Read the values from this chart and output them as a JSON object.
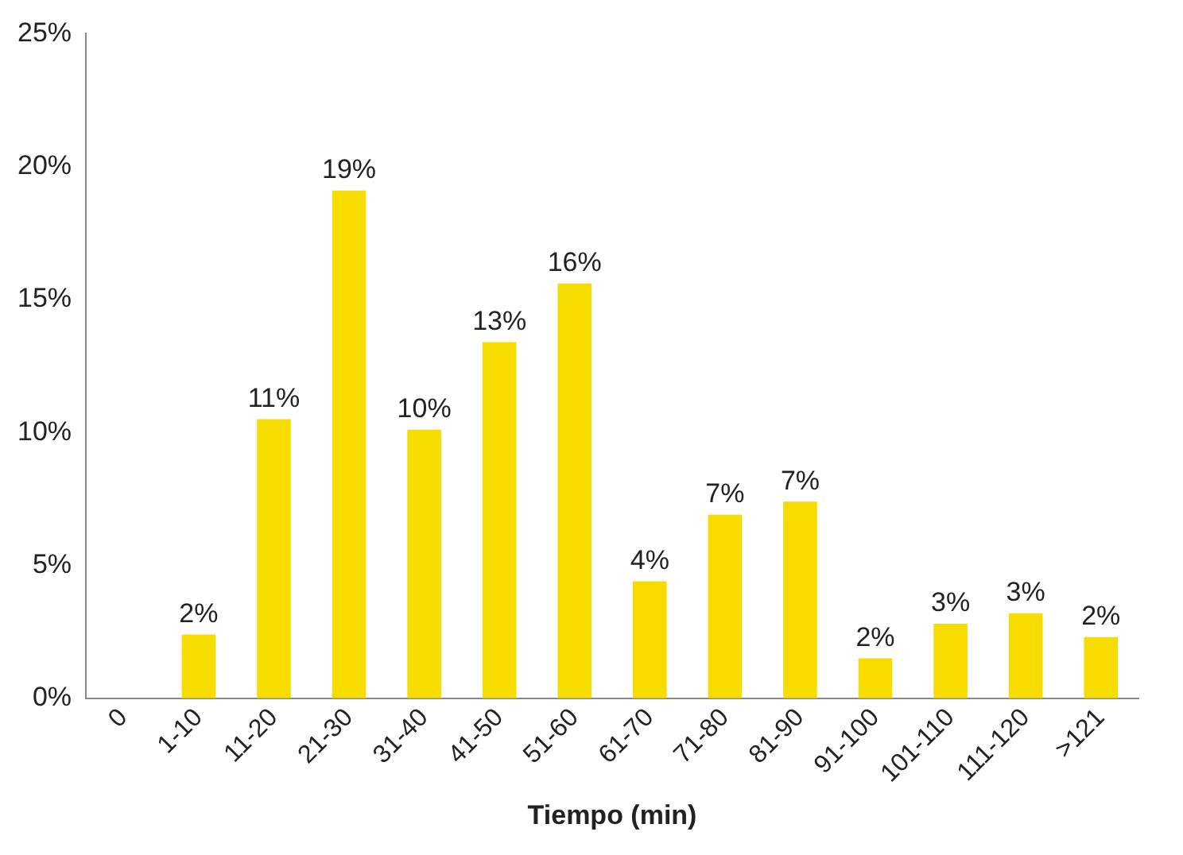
{
  "chart_data": {
    "type": "bar",
    "xlabel": "Tiempo (min)",
    "categories": [
      "0",
      "1-10",
      "11-20",
      "21-30",
      "31-40",
      "41-50",
      "51-60",
      "61-70",
      "71-80",
      "81-90",
      "91-100",
      "101-110",
      "111-120",
      ">121"
    ],
    "values": [
      0,
      2.4,
      10.5,
      19.1,
      10.1,
      13.4,
      15.6,
      4.4,
      6.9,
      7.4,
      1.5,
      2.8,
      3.2,
      2.3
    ],
    "value_labels": [
      null,
      "2%",
      "11%",
      "19%",
      "10%",
      "13%",
      "16%",
      "4%",
      "7%",
      "7%",
      "2%",
      "3%",
      "3%",
      "2%"
    ],
    "color": "#f7dc00",
    "ylim": [
      0,
      25
    ],
    "yticks": [
      {
        "value": 0,
        "label": "0%"
      },
      {
        "value": 5,
        "label": "5%"
      },
      {
        "value": 10,
        "label": "10%"
      },
      {
        "value": 15,
        "label": "15%"
      },
      {
        "value": 20,
        "label": "20%"
      },
      {
        "value": 25,
        "label": "25%"
      }
    ],
    "grid": false,
    "legend": false
  }
}
